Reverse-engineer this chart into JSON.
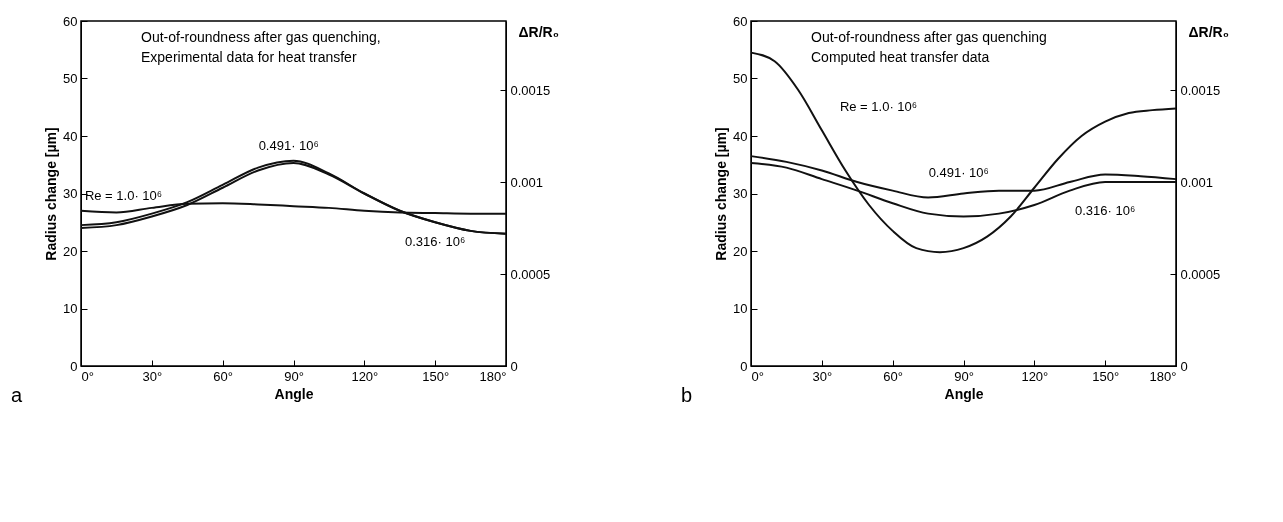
{
  "chart_data": [
    {
      "type": "line",
      "title": "Out-of-roundness after gas quenching,",
      "subtitle": "Experimental data for heat transfer",
      "xlabel": "Angle",
      "ylabel": "Radius change [µm]",
      "y2label": "ΔR/R₀",
      "annotations": [
        "a"
      ],
      "xlim": [
        0,
        180
      ],
      "xticks": [
        {
          "value": 0,
          "label": "0°"
        },
        {
          "value": 30,
          "label": "30°"
        },
        {
          "value": 60,
          "label": "60°"
        },
        {
          "value": 90,
          "label": "90°"
        },
        {
          "value": 120,
          "label": "120°"
        },
        {
          "value": 150,
          "label": "150°"
        },
        {
          "value": 180,
          "label": "180°"
        }
      ],
      "ylim": [
        0,
        60
      ],
      "yticks": [
        0,
        10,
        20,
        30,
        40,
        50,
        60
      ],
      "y2lim": [
        0,
        0.001875
      ],
      "y2ticks": [
        0,
        0.0005,
        0.001,
        0.0015
      ],
      "x": [
        0,
        15,
        30,
        45,
        60,
        75,
        90,
        105,
        120,
        135,
        150,
        165,
        180
      ],
      "series": [
        {
          "name": "Re = 1.0· 10⁶",
          "color": "#111111",
          "values": [
            27,
            26.7,
            27.5,
            28.2,
            28.3,
            28.1,
            27.8,
            27.5,
            27,
            26.7,
            26.6,
            26.5,
            26.5
          ]
        },
        {
          "name": "0.491· 10⁶",
          "color": "#111111",
          "values": [
            24.5,
            25,
            26.5,
            28.5,
            31.5,
            34.5,
            35.7,
            33.5,
            30,
            27,
            25,
            23.5,
            23
          ]
        },
        {
          "name": "0.316· 10⁶",
          "color": "#111111",
          "values": [
            24,
            24.5,
            26,
            28,
            31,
            34,
            35.3,
            33.3,
            30,
            27,
            25,
            23.5,
            23
          ]
        }
      ],
      "legend": false,
      "grid": false
    },
    {
      "type": "line",
      "title": "Out-of-roundness after gas quenching",
      "subtitle": "Computed heat transfer data",
      "xlabel": "Angle",
      "ylabel": "Radius change [µm]",
      "y2label": "ΔR/R₀",
      "annotations": [
        "b"
      ],
      "xlim": [
        0,
        180
      ],
      "xticks": [
        {
          "value": 0,
          "label": "0°"
        },
        {
          "value": 30,
          "label": "30°"
        },
        {
          "value": 60,
          "label": "60°"
        },
        {
          "value": 90,
          "label": "90°"
        },
        {
          "value": 120,
          "label": "120°"
        },
        {
          "value": 150,
          "label": "150°"
        },
        {
          "value": 180,
          "label": "180°"
        }
      ],
      "ylim": [
        0,
        60
      ],
      "yticks": [
        0,
        10,
        20,
        30,
        40,
        50,
        60
      ],
      "y2lim": [
        0,
        0.001875
      ],
      "y2ticks": [
        0,
        0.0005,
        0.001,
        0.0015
      ],
      "series": [
        {
          "name": "Re = 1.0· 10⁶",
          "color": "#111111",
          "x": [
            0,
            10,
            20,
            30,
            40,
            50,
            60,
            70,
            80,
            90,
            100,
            110,
            120,
            130,
            140,
            150,
            160,
            170,
            180
          ],
          "values": [
            54.5,
            53,
            48,
            41,
            34,
            28,
            23.5,
            20.5,
            19.8,
            20.5,
            22.5,
            26,
            31,
            36,
            40,
            42.5,
            44,
            44.5,
            44.8
          ]
        },
        {
          "name": "0.491· 10⁶",
          "color": "#111111",
          "x": [
            0,
            15,
            30,
            45,
            60,
            75,
            90,
            105,
            120,
            135,
            150,
            165,
            180
          ],
          "values": [
            36.5,
            35.5,
            34,
            32,
            30.5,
            29.3,
            30,
            30.5,
            30.5,
            32,
            33.3,
            33,
            32.5
          ]
        },
        {
          "name": "0.316· 10⁶",
          "color": "#111111",
          "x": [
            0,
            15,
            30,
            45,
            60,
            75,
            90,
            105,
            120,
            135,
            150,
            165,
            180
          ],
          "values": [
            35.3,
            34.5,
            32.5,
            30.5,
            28.3,
            26.5,
            26,
            26.5,
            28,
            30.5,
            32,
            32,
            32
          ]
        }
      ],
      "legend": false,
      "grid": false
    }
  ]
}
